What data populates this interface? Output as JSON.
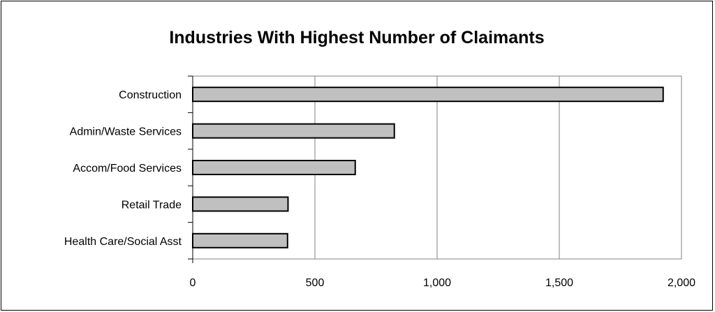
{
  "chart_data": {
    "type": "bar",
    "orientation": "horizontal",
    "title": "Industries With Highest Number of Claimants",
    "xlabel": "",
    "ylabel": "",
    "categories": [
      "Construction",
      "Admin/Waste Services",
      "Accom/Food Services",
      "Retail Trade",
      "Health Care/Social Asst"
    ],
    "values": [
      1925,
      825,
      665,
      390,
      388
    ],
    "xlim": [
      0,
      2000
    ],
    "xticks": [
      "0",
      "500",
      "1,000",
      "1,500",
      "2,000"
    ],
    "xtick_values": [
      0,
      500,
      1000,
      1500,
      2000
    ],
    "grid": "vertical",
    "legend": "none",
    "colors": {
      "bar_fill": "#c0c0c0",
      "bar_stroke": "#000000",
      "grid": "#808080",
      "axis": "#000000"
    }
  }
}
